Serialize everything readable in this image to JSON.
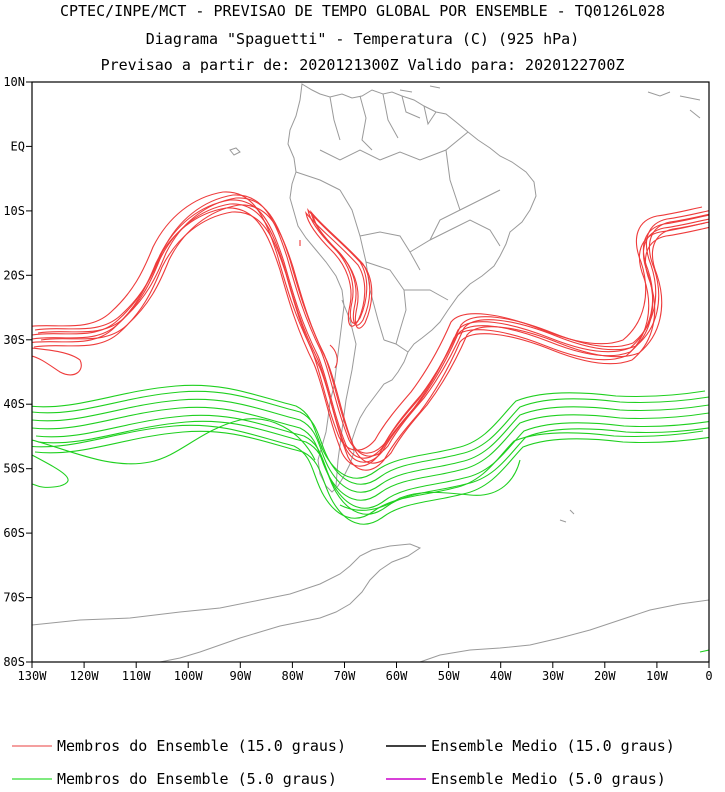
{
  "header": {
    "line1": "CPTEC/INPE/MCT - PREVISAO DE TEMPO GLOBAL POR ENSEMBLE - TQ0126L028",
    "line2": "Diagrama \"Spaguetti\" - Temperatura (C) (925 hPa)",
    "line3": "Previsao a partir de: 2020121300Z  Valido para: 2020122700Z"
  },
  "map": {
    "lat_labels": [
      "10N",
      "EQ",
      "10S",
      "20S",
      "30S",
      "40S",
      "50S",
      "60S",
      "70S",
      "80S"
    ],
    "lon_labels": [
      "130W",
      "120W",
      "110W",
      "100W",
      "90W",
      "80W",
      "70W",
      "60W",
      "50W",
      "40W",
      "30W",
      "20W",
      "10W",
      "0"
    ],
    "colors": {
      "warm_members": "#ee3b3b",
      "cold_members": "#1fd01f",
      "land": "#9a9a9a",
      "frame": "#000000"
    }
  },
  "legend": {
    "members_15": "Membros do Ensemble (15.0 graus)",
    "mean_15": "Ensemble Medio (15.0 graus)",
    "members_5": "Membros do Ensemble (5.0 graus)",
    "mean_5": "Ensemble Medio (5.0 graus)",
    "colors": {
      "members_15": "#ee6666",
      "mean_15": "#000000",
      "members_5": "#33dd33",
      "mean_5": "#cc00cc"
    }
  }
}
